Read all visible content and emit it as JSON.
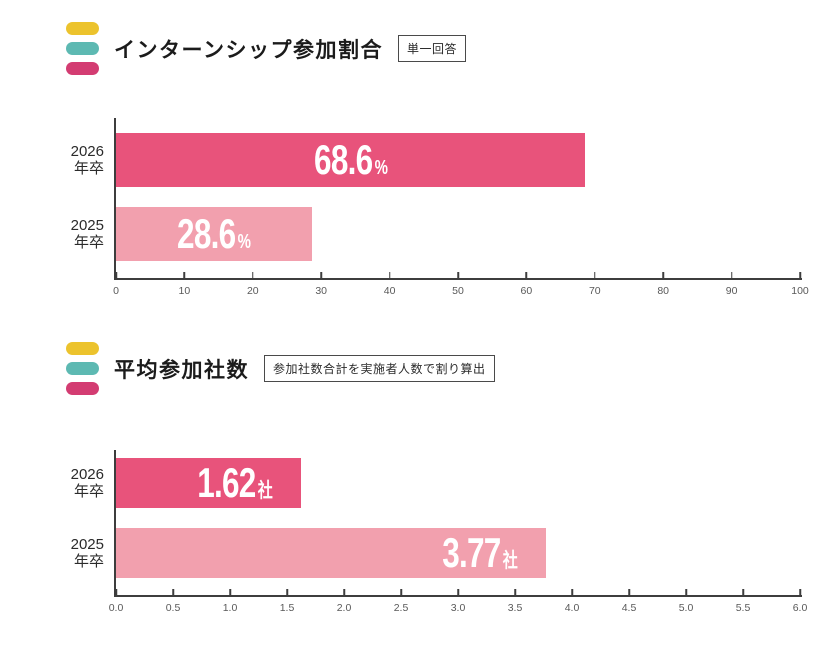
{
  "palette": {
    "icon_yellow": "#ecc32d",
    "icon_teal": "#5db9b2",
    "icon_magenta": "#d33c72",
    "bar_dark_pink": "#e8537b",
    "bar_light_pink": "#f2a0ae",
    "axis_color": "#3d3d3d"
  },
  "chart_data": [
    {
      "type": "bar",
      "orientation": "horizontal",
      "title": "インターンシップ参加割合",
      "note": "単一回答",
      "categories": [
        "2026年卒",
        "2025年卒"
      ],
      "category_display": [
        "2026\n年卒",
        "2025\n年卒"
      ],
      "values": [
        68.6,
        28.6
      ],
      "value_display": [
        "68.6",
        "28.6"
      ],
      "unit": "%",
      "xlabel": "",
      "ylabel": "",
      "xlim": [
        0,
        100
      ],
      "ticks": [
        0,
        10,
        20,
        30,
        40,
        50,
        60,
        70,
        80,
        90,
        100
      ],
      "tick_labels": [
        "0",
        "10",
        "20",
        "30",
        "40",
        "50",
        "60",
        "70",
        "80",
        "90",
        "100"
      ],
      "bar_colors": [
        "#e8537b",
        "#f2a0ae"
      ],
      "value_align": "center",
      "grid": false
    },
    {
      "type": "bar",
      "orientation": "horizontal",
      "title": "平均参加社数",
      "note": "参加社数合計を実施者人数で割り算出",
      "categories": [
        "2026年卒",
        "2025年卒"
      ],
      "category_display": [
        "2026\n年卒",
        "2025\n年卒"
      ],
      "values": [
        1.62,
        3.77
      ],
      "value_display": [
        "1.62",
        "3.77"
      ],
      "unit": "社",
      "xlabel": "",
      "ylabel": "",
      "xlim": [
        0,
        6
      ],
      "ticks": [
        0,
        0.5,
        1,
        1.5,
        2,
        2.5,
        3,
        3.5,
        4,
        4.5,
        5,
        5.5,
        6
      ],
      "tick_labels": [
        "0.0",
        "0.5",
        "1.0",
        "1.5",
        "2.0",
        "2.5",
        "3.0",
        "3.5",
        "4.0",
        "4.5",
        "5.0",
        "5.5",
        "6.0"
      ],
      "bar_colors": [
        "#e8537b",
        "#f2a0ae"
      ],
      "value_align": "right",
      "grid": false
    }
  ]
}
